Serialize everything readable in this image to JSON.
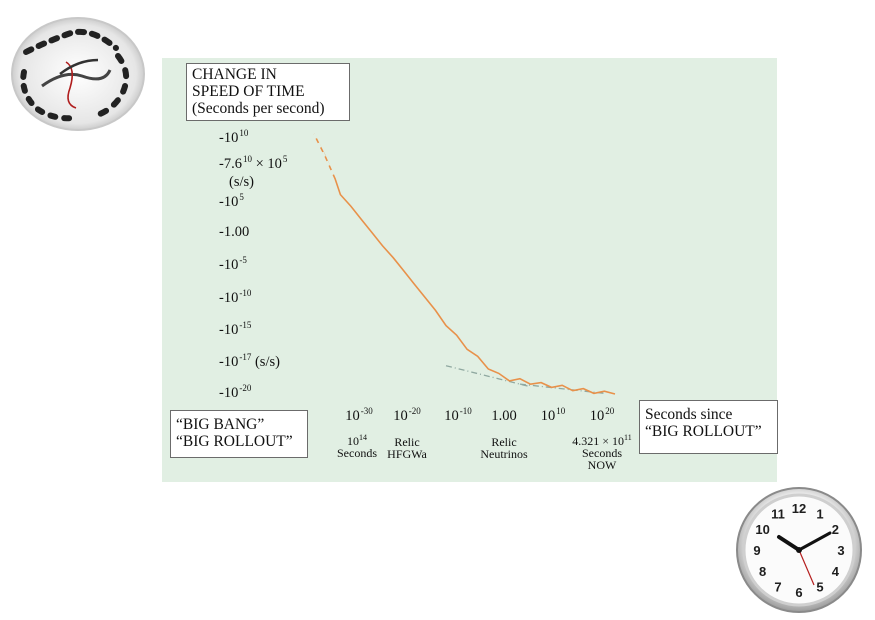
{
  "title_lines": [
    "CHANGE IN",
    "SPEED OF TIME",
    "(Seconds per second)"
  ],
  "y_ticks": [
    {
      "base": "-10",
      "exp": "10"
    },
    {
      "base": "-7.6",
      "exp": "10",
      "rest": " × 10",
      "exp2": "5"
    },
    {
      "base": "(s/s)"
    },
    {
      "base": "-10",
      "exp": "5"
    },
    {
      "base": "-1.00"
    },
    {
      "base": "-10",
      "exp": "-5"
    },
    {
      "base": "-10",
      "exp": "-10"
    },
    {
      "base": "-10",
      "exp": "-15"
    },
    {
      "base": "-10",
      "exp": "-17",
      "rest": "  (s/s)"
    },
    {
      "base": "-10",
      "exp": "-20"
    }
  ],
  "x_ticks": [
    {
      "base": "10",
      "exp": "-30"
    },
    {
      "base": "10",
      "exp": "-20"
    },
    {
      "base": "10",
      "exp": "-10"
    },
    {
      "base": "1.00"
    },
    {
      "base": "10",
      "exp": "10"
    },
    {
      "base": "10",
      "exp": "20"
    }
  ],
  "x_notes": [
    {
      "lines": [
        "10",
        "Seconds"
      ],
      "sup": "14"
    },
    {
      "lines": [
        "Relic",
        "HFGWa"
      ]
    },
    {
      "lines": [
        "Relic",
        "Neutrinos"
      ]
    },
    {
      "lines": [
        "4.321 × 10",
        "Seconds",
        "NOW"
      ],
      "sup": "11"
    }
  ],
  "left_box": [
    "“BIG BANG”",
    "“BIG ROLLOUT”"
  ],
  "right_box": [
    "Seconds since",
    "“BIG ROLLOUT”"
  ],
  "colors": {
    "panel": "#e1efe3",
    "curve": "#e8914a",
    "dashed_trend": "#8fa8a0"
  },
  "icons": [
    "melting-clock-icon",
    "wall-clock-icon"
  ],
  "chart_data": {
    "type": "line",
    "title": "CHANGE IN SPEED OF TIME (Seconds per second)",
    "xlabel": "Seconds since “BIG ROLLOUT”",
    "ylabel": "",
    "x_scale": "log",
    "y_scale": "log (negative)",
    "series": [
      {
        "x_log10": [
          -35,
          -33,
          -31,
          -30,
          -28,
          -26,
          -24,
          -22,
          -20,
          -18,
          -16,
          -14,
          -12,
          -10,
          -8,
          -6,
          -4,
          -2,
          0,
          2,
          4,
          6,
          8,
          10,
          12,
          14,
          16,
          18,
          20,
          22
        ],
        "y_level": [
          10.0,
          8.4,
          6.6,
          5.4,
          4.5,
          3.5,
          2.5,
          1.5,
          0.6,
          -0.4,
          -1.4,
          -2.4,
          -3.4,
          -4.4,
          -5.4,
          -6.2,
          -7.0,
          -7.7,
          -8.3,
          -8.6,
          -8.7,
          -8.85,
          -9.0,
          -9.1,
          -9.2,
          -9.35,
          -9.45,
          -9.55,
          -9.65,
          -9.75
        ]
      }
    ],
    "trend_segments": [
      {
        "x_log10": [
          -10,
          6
        ],
        "y_level": [
          -7.6,
          -9.2
        ]
      },
      {
        "x_log10": [
          4,
          20
        ],
        "y_level": [
          -9.0,
          -9.7
        ]
      }
    ]
  }
}
